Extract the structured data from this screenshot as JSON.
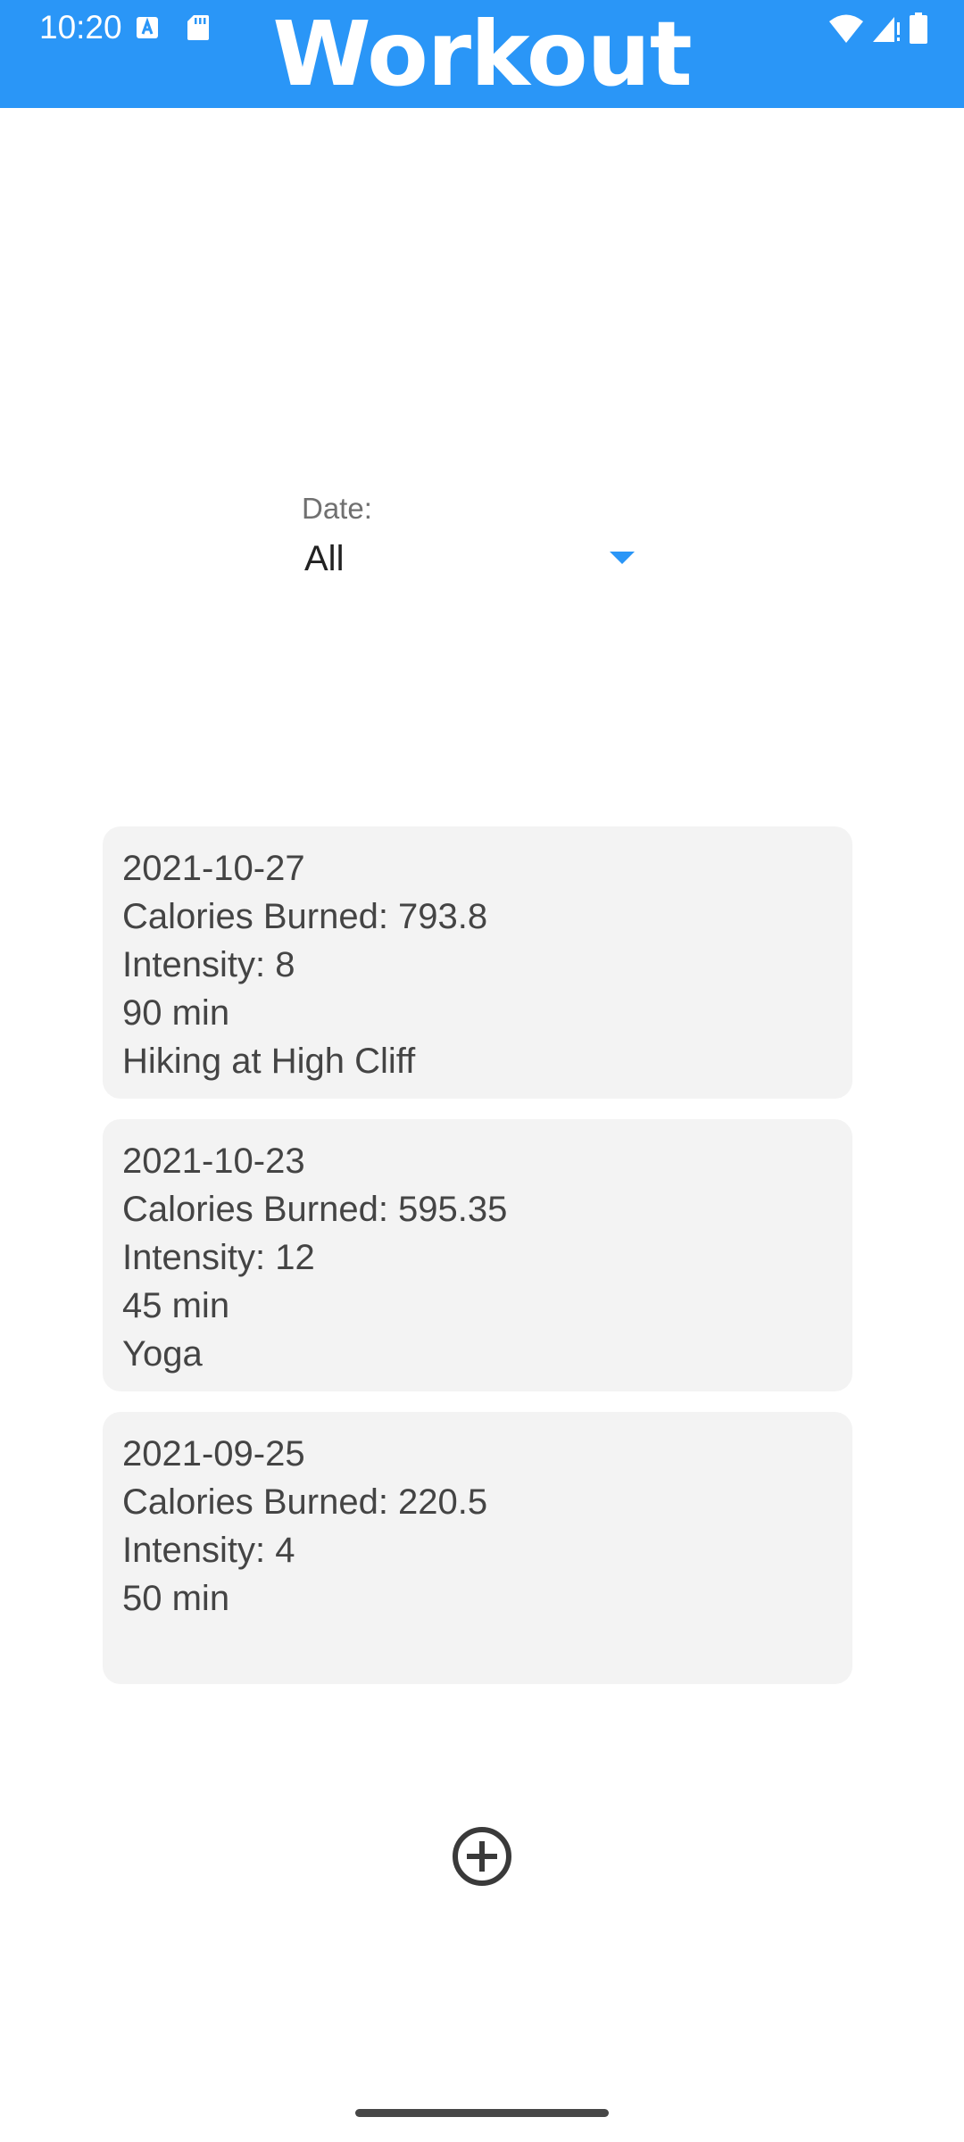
{
  "status_bar": {
    "time": "10:20",
    "icons": [
      "a-notification-icon",
      "sd-card-icon",
      "wifi-icon",
      "signal-icon",
      "battery-icon"
    ]
  },
  "header": {
    "title": "Workout",
    "background_color": "#2a96f7"
  },
  "filter": {
    "label": "Date:",
    "selected": "All",
    "accent_color": "#2a96f7"
  },
  "workouts": [
    {
      "date": "2021-10-27",
      "calories": "Calories Burned: 793.8",
      "intensity": "Intensity: 8",
      "duration": "90 min",
      "description": "Hiking at High Cliff"
    },
    {
      "date": "2021-10-23",
      "calories": "Calories Burned: 595.35",
      "intensity": "Intensity: 12",
      "duration": "45 min",
      "description": "Yoga"
    },
    {
      "date": "2021-09-25",
      "calories": "Calories Burned: 220.5",
      "intensity": "Intensity: 4",
      "duration": "50 min",
      "description": ""
    }
  ],
  "add_button": {
    "icon": "add-circle-icon"
  }
}
